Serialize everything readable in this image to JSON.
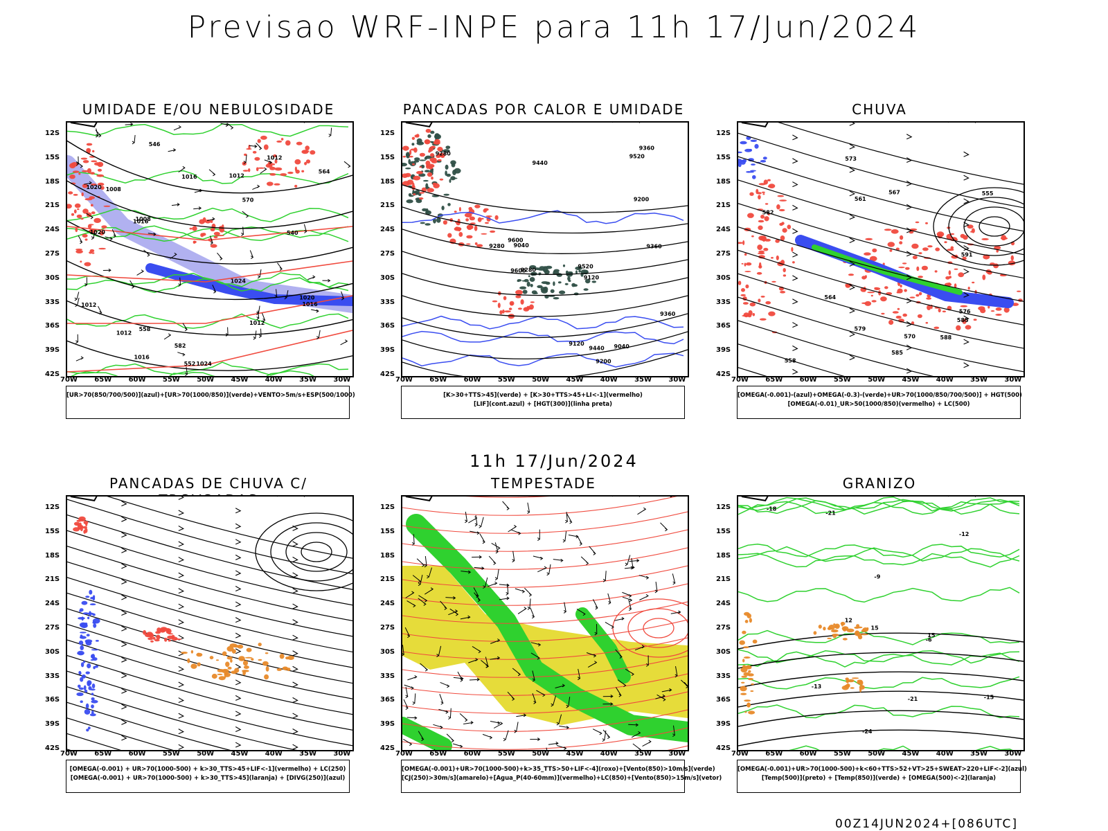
{
  "title": "Previsao WRF-INPE  para 11h 17/Jun/2024",
  "mid_date": "11h 17/Jun/2024",
  "footer": "00Z14JUN2024+[086UTC]",
  "lat_ticks": [
    "12S",
    "15S",
    "18S",
    "21S",
    "24S",
    "27S",
    "30S",
    "33S",
    "36S",
    "39S",
    "42S"
  ],
  "lon_ticks": [
    "70W",
    "65W",
    "60W",
    "55W",
    "50W",
    "45W",
    "40W",
    "35W",
    "30W"
  ],
  "colors": {
    "blue": "#3a4df0",
    "lavender": "#a9a9ee",
    "green": "#2fd12f",
    "red": "#f04a3e",
    "darkgreen": "#2f4f46",
    "orange": "#e88a2a",
    "yellow": "#e6dc3a",
    "black": "#000000"
  },
  "panels": [
    {
      "title": "UMIDADE E/OU NEBULOSIDADE",
      "legend": [
        "[UR>70(850/700/500)](azul)+[UR>70(1000/850)](verde)+VENTO>5m/s+ESP(500/1000)"
      ],
      "labels": [
        "1012",
        "1016",
        "1016",
        "1012",
        "1008",
        "1020",
        "1012",
        "1012",
        "1012",
        "1016",
        "1020",
        "1024",
        "1024",
        "1020",
        "1016",
        "1008",
        "570",
        "564",
        "558",
        "552",
        "546",
        "540",
        "582"
      ]
    },
    {
      "title": "PANCADAS POR CALOR E UMIDADE",
      "legend": [
        "[K>30+TTS>45](verde) + [K>30+TTS>45+LI<-1](vermelho)",
        "[LIF](cont.azul) + [HGT(300)](linha preta)"
      ],
      "labels": [
        "9600",
        "9520",
        "9440",
        "9360",
        "9280",
        "9200",
        "9120",
        "9040",
        "9280",
        "9360",
        "9600",
        "9520",
        "9440",
        "9360",
        "9280",
        "9200",
        "9120",
        "9040"
      ]
    },
    {
      "title": "CHUVA",
      "legend": [
        "[OMEGA(-0.001)-(azul)+OMEGA(-0.3)-(verde)+UR>70(1000/850/700/500)] + HGT(500)",
        "[OMEGA(-0.01)_UR>50(1000/850)(vermelho) + LC(500)"
      ],
      "labels": [
        "582",
        "579",
        "576",
        "573",
        "570",
        "567",
        "564",
        "561",
        "558",
        "555",
        "585",
        "588",
        "591",
        "585"
      ]
    },
    {
      "title": "PANCADAS DE CHUVA C/ TROVOADAS",
      "legend": [
        "[OMEGA(-0.001) + UR>70(1000-500) + k>30_TTS>45+LIF<-1](vermelho) + LC(250)",
        "[OMEGA(-0.001) + UR>70(1000-500) + k>30_TTS>45](laranja) + [DIVG(250)](azul)"
      ],
      "labels": []
    },
    {
      "title": "TEMPESTADE",
      "legend": [
        "[OMEGA(-0.001)+UR>70(1000-500)+k>35_TTS>50+LIF<-4](roxo)+[Vento(850)>10m/s](verde)",
        "[CJ(250)>30m/s](amarelo)+[Agua_P(40-60mm)](vermelho)+LC(850)+[Vento(850)>15m/s](vetor)"
      ],
      "labels": []
    },
    {
      "title": "GRANIZO",
      "legend": [
        "[OMEGA(-0.001)+UR>70(1000-500)+k<60+TTS>52+VT>25+SWEAT>220+LIF<-2](azul)",
        "[Temp(500)](preto) + [Temp(850)](verde) + [OMEGA(500)<-2](laranja)"
      ],
      "labels": [
        "-12",
        "-15",
        "-18",
        "-21",
        "-24",
        "-13",
        "-21",
        "-9",
        "-6",
        "15",
        "12",
        "15"
      ]
    }
  ]
}
